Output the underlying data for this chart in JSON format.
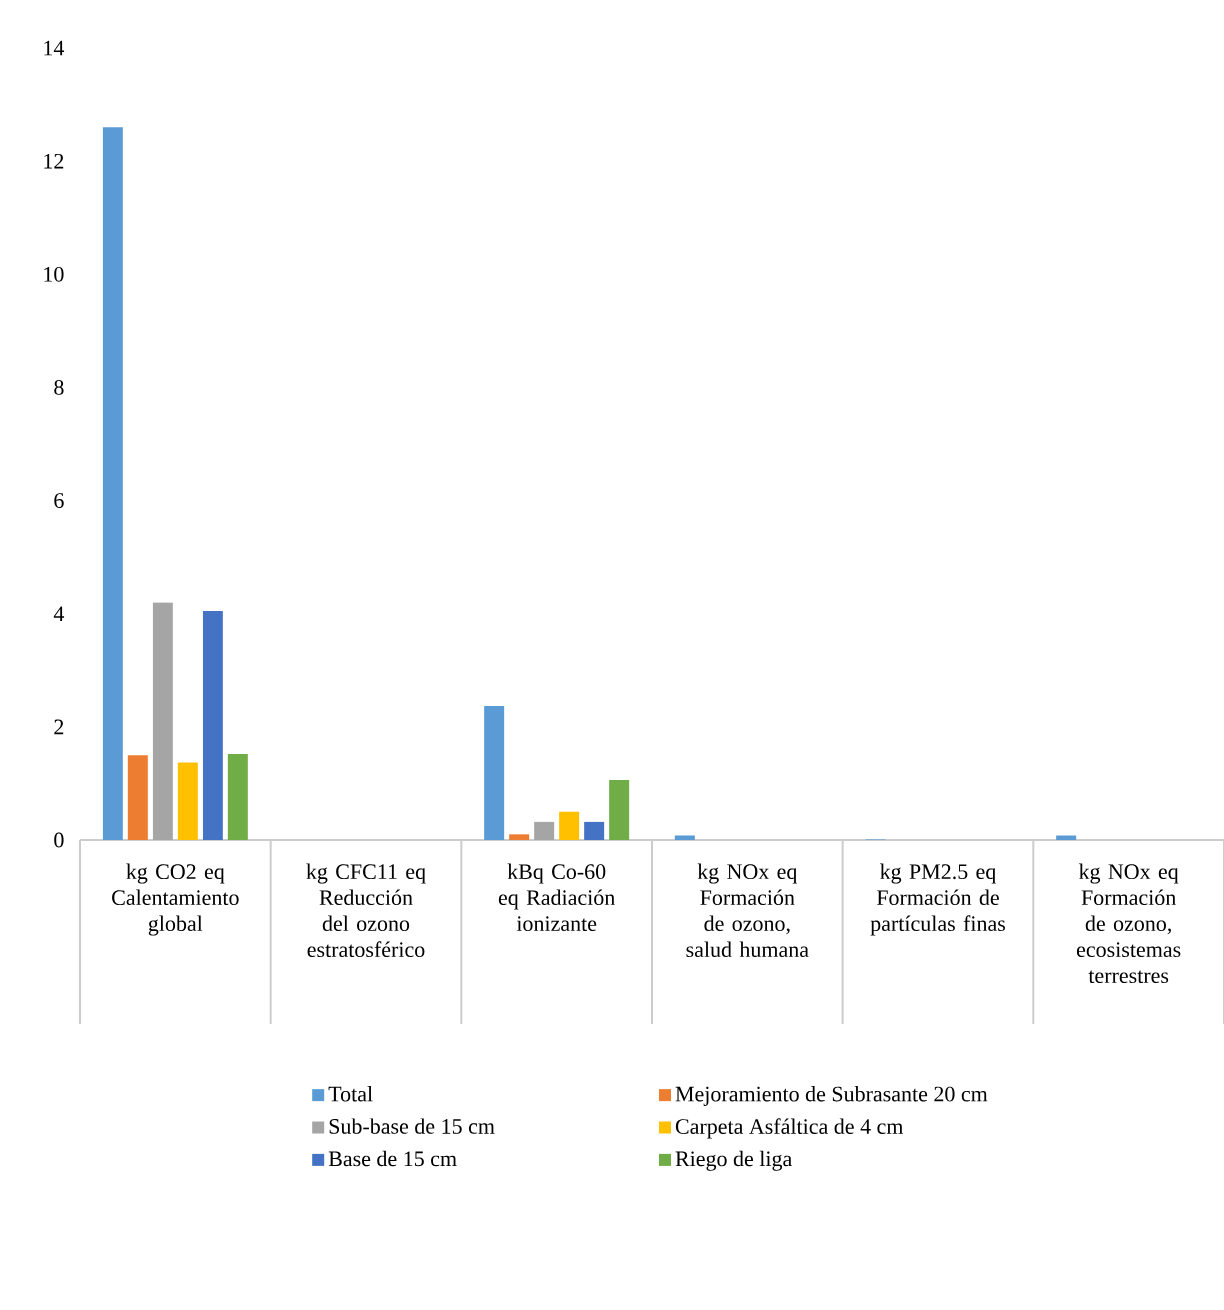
{
  "chart_data": {
    "type": "bar",
    "categories": [
      "kg CO2 eq Calentamiento global",
      "kg CFC11 eq Reducción del ozono estratosférico",
      "kBq Co-60 eq Radiación ionizante",
      "kg NOx eq Formación de ozono, salud humana",
      "kg PM2.5 eq Formación de partículas finas",
      "kg NOx eq Formación de ozono, ecosistemas terrestres"
    ],
    "series": [
      {
        "name": "Total",
        "color": "#5b9bd5",
        "values": [
          12.6,
          0,
          2.37,
          0.08,
          0.01,
          0.08
        ]
      },
      {
        "name": "Mejoramiento de Subrasante 20 cm",
        "color": "#ed7d31",
        "values": [
          1.5,
          0,
          0.1,
          0,
          0,
          0
        ]
      },
      {
        "name": "Sub-base de 15 cm",
        "color": "#a5a5a5",
        "values": [
          4.2,
          0,
          0.32,
          null,
          0,
          null
        ]
      },
      {
        "name": "Carpeta Asfáltica de 4 cm",
        "color": "#ffc000",
        "values": [
          1.37,
          0,
          0.5,
          0,
          0,
          0
        ]
      },
      {
        "name": "Base de 15 cm",
        "color": "#4472c4",
        "values": [
          4.05,
          0,
          0.32,
          0,
          0,
          0
        ]
      },
      {
        "name": "Riego de liga",
        "color": "#70ad47",
        "values": [
          1.52,
          0,
          1.06,
          0,
          0,
          0
        ]
      }
    ],
    "ylim": [
      0,
      14
    ],
    "yticks": [
      0,
      2,
      4,
      6,
      8,
      10,
      12,
      14
    ],
    "grid": false,
    "legend": "bottom"
  }
}
